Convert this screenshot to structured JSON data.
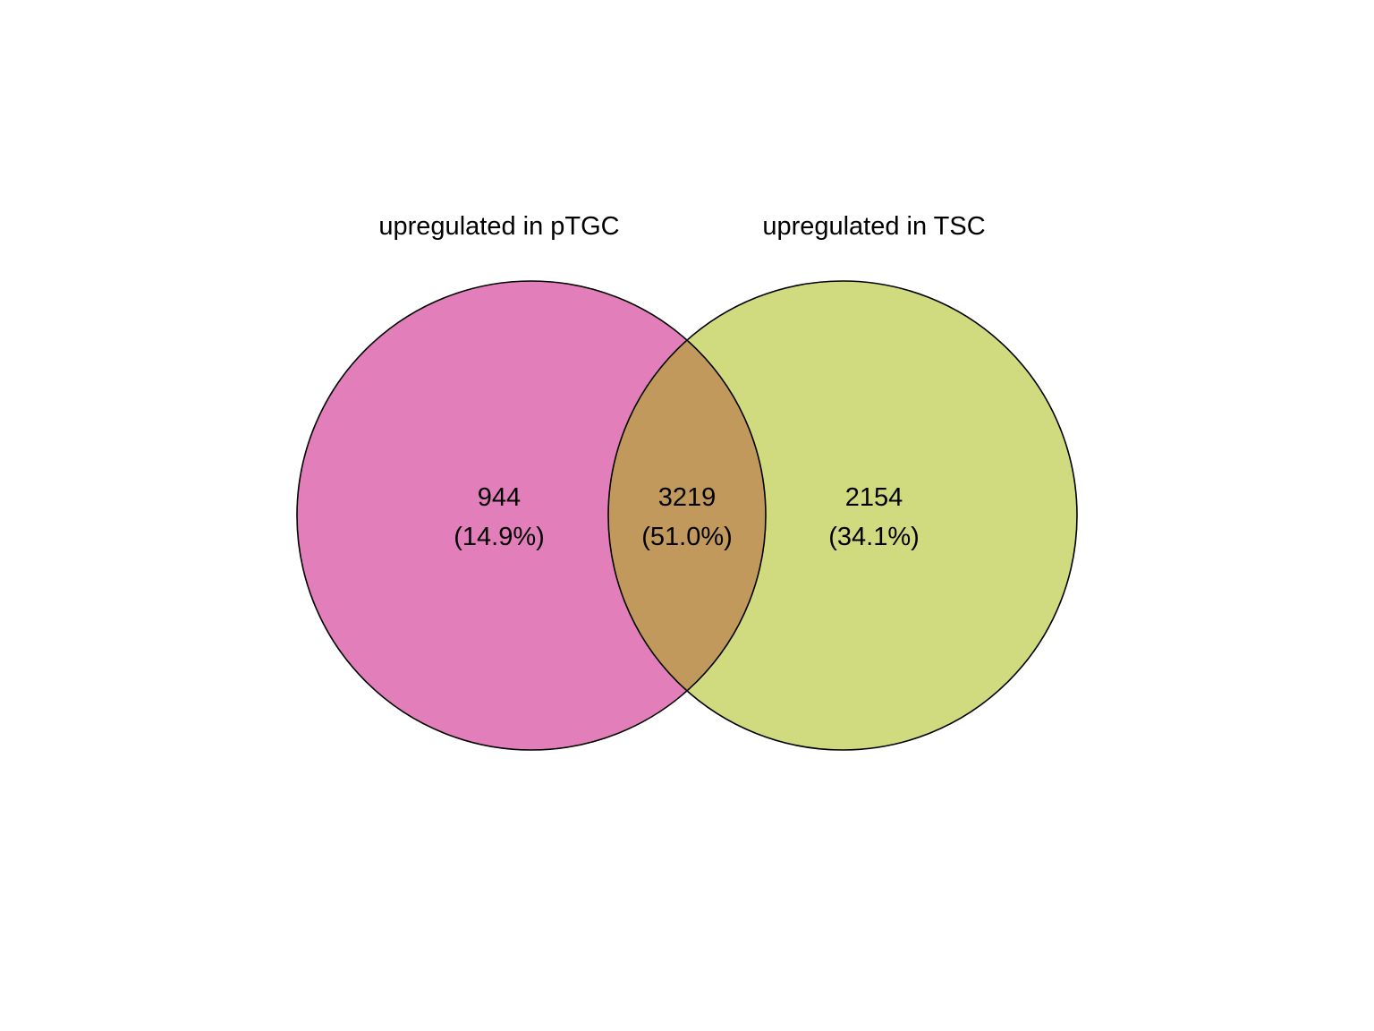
{
  "venn": {
    "sets": [
      {
        "label": "upregulated in pTGC",
        "color": "#e27eba"
      },
      {
        "label": "upregulated in TSC",
        "color": "#d0da7e"
      }
    ],
    "overlap_color": "#c1995c",
    "outline_color": "#000000",
    "regions": {
      "left_only": {
        "count": "944",
        "percent": "(14.9%)"
      },
      "both": {
        "count": "3219",
        "percent": "(51.0%)"
      },
      "right_only": {
        "count": "2154",
        "percent": "(34.1%)"
      }
    }
  }
}
